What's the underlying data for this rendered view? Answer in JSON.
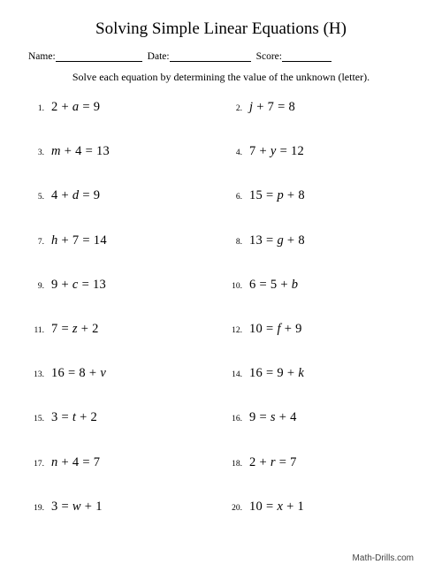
{
  "title": "Solving Simple Linear Equations (H)",
  "header": {
    "name_label": "Name:",
    "date_label": "Date:",
    "score_label": "Score:",
    "name_blank_width": 98,
    "date_blank_width": 92,
    "score_blank_width": 56
  },
  "instructions": "Solve each equation by determining the value of the unknown (letter).",
  "problems": [
    {
      "n": "1.",
      "parts": [
        "2 + ",
        {
          "v": "a"
        },
        " = 9"
      ]
    },
    {
      "n": "2.",
      "parts": [
        {
          "v": "j"
        },
        " + 7 = 8"
      ]
    },
    {
      "n": "3.",
      "parts": [
        {
          "v": "m"
        },
        " + 4 = 13"
      ]
    },
    {
      "n": "4.",
      "parts": [
        "7 + ",
        {
          "v": "y"
        },
        " = 12"
      ]
    },
    {
      "n": "5.",
      "parts": [
        "4 + ",
        {
          "v": "d"
        },
        " = 9"
      ]
    },
    {
      "n": "6.",
      "parts": [
        "15 = ",
        {
          "v": "p"
        },
        " + 8"
      ]
    },
    {
      "n": "7.",
      "parts": [
        {
          "v": "h"
        },
        " + 7 = 14"
      ]
    },
    {
      "n": "8.",
      "parts": [
        "13 = ",
        {
          "v": "g"
        },
        " + 8"
      ]
    },
    {
      "n": "9.",
      "parts": [
        "9 + ",
        {
          "v": "c"
        },
        " = 13"
      ]
    },
    {
      "n": "10.",
      "parts": [
        "6 = 5 + ",
        {
          "v": "b"
        }
      ]
    },
    {
      "n": "11.",
      "parts": [
        "7 = ",
        {
          "v": "z"
        },
        " + 2"
      ]
    },
    {
      "n": "12.",
      "parts": [
        "10 = ",
        {
          "v": "f"
        },
        " + 9"
      ]
    },
    {
      "n": "13.",
      "parts": [
        "16 = 8 + ",
        {
          "v": "v"
        }
      ]
    },
    {
      "n": "14.",
      "parts": [
        "16 = 9 + ",
        {
          "v": "k"
        }
      ]
    },
    {
      "n": "15.",
      "parts": [
        "3 = ",
        {
          "v": "t"
        },
        " + 2"
      ]
    },
    {
      "n": "16.",
      "parts": [
        "9 = ",
        {
          "v": "s"
        },
        " + 4"
      ]
    },
    {
      "n": "17.",
      "parts": [
        {
          "v": "n"
        },
        " + 4 = 7"
      ]
    },
    {
      "n": "18.",
      "parts": [
        "2 + ",
        {
          "v": "r"
        },
        " = 7"
      ]
    },
    {
      "n": "19.",
      "parts": [
        "3 = ",
        {
          "v": "w"
        },
        " + 1"
      ]
    },
    {
      "n": "20.",
      "parts": [
        "10 = ",
        {
          "v": "x"
        },
        " + 1"
      ]
    }
  ],
  "footer": "Math-Drills.com",
  "style": {
    "page_bg": "#ffffff",
    "text_color": "#000000",
    "title_fontsize": 19,
    "equation_fontsize": 14.5,
    "pnum_fontsize": 9.5,
    "instructions_fontsize": 12,
    "header_fontsize": 11.5,
    "footer_fontsize": 10
  }
}
